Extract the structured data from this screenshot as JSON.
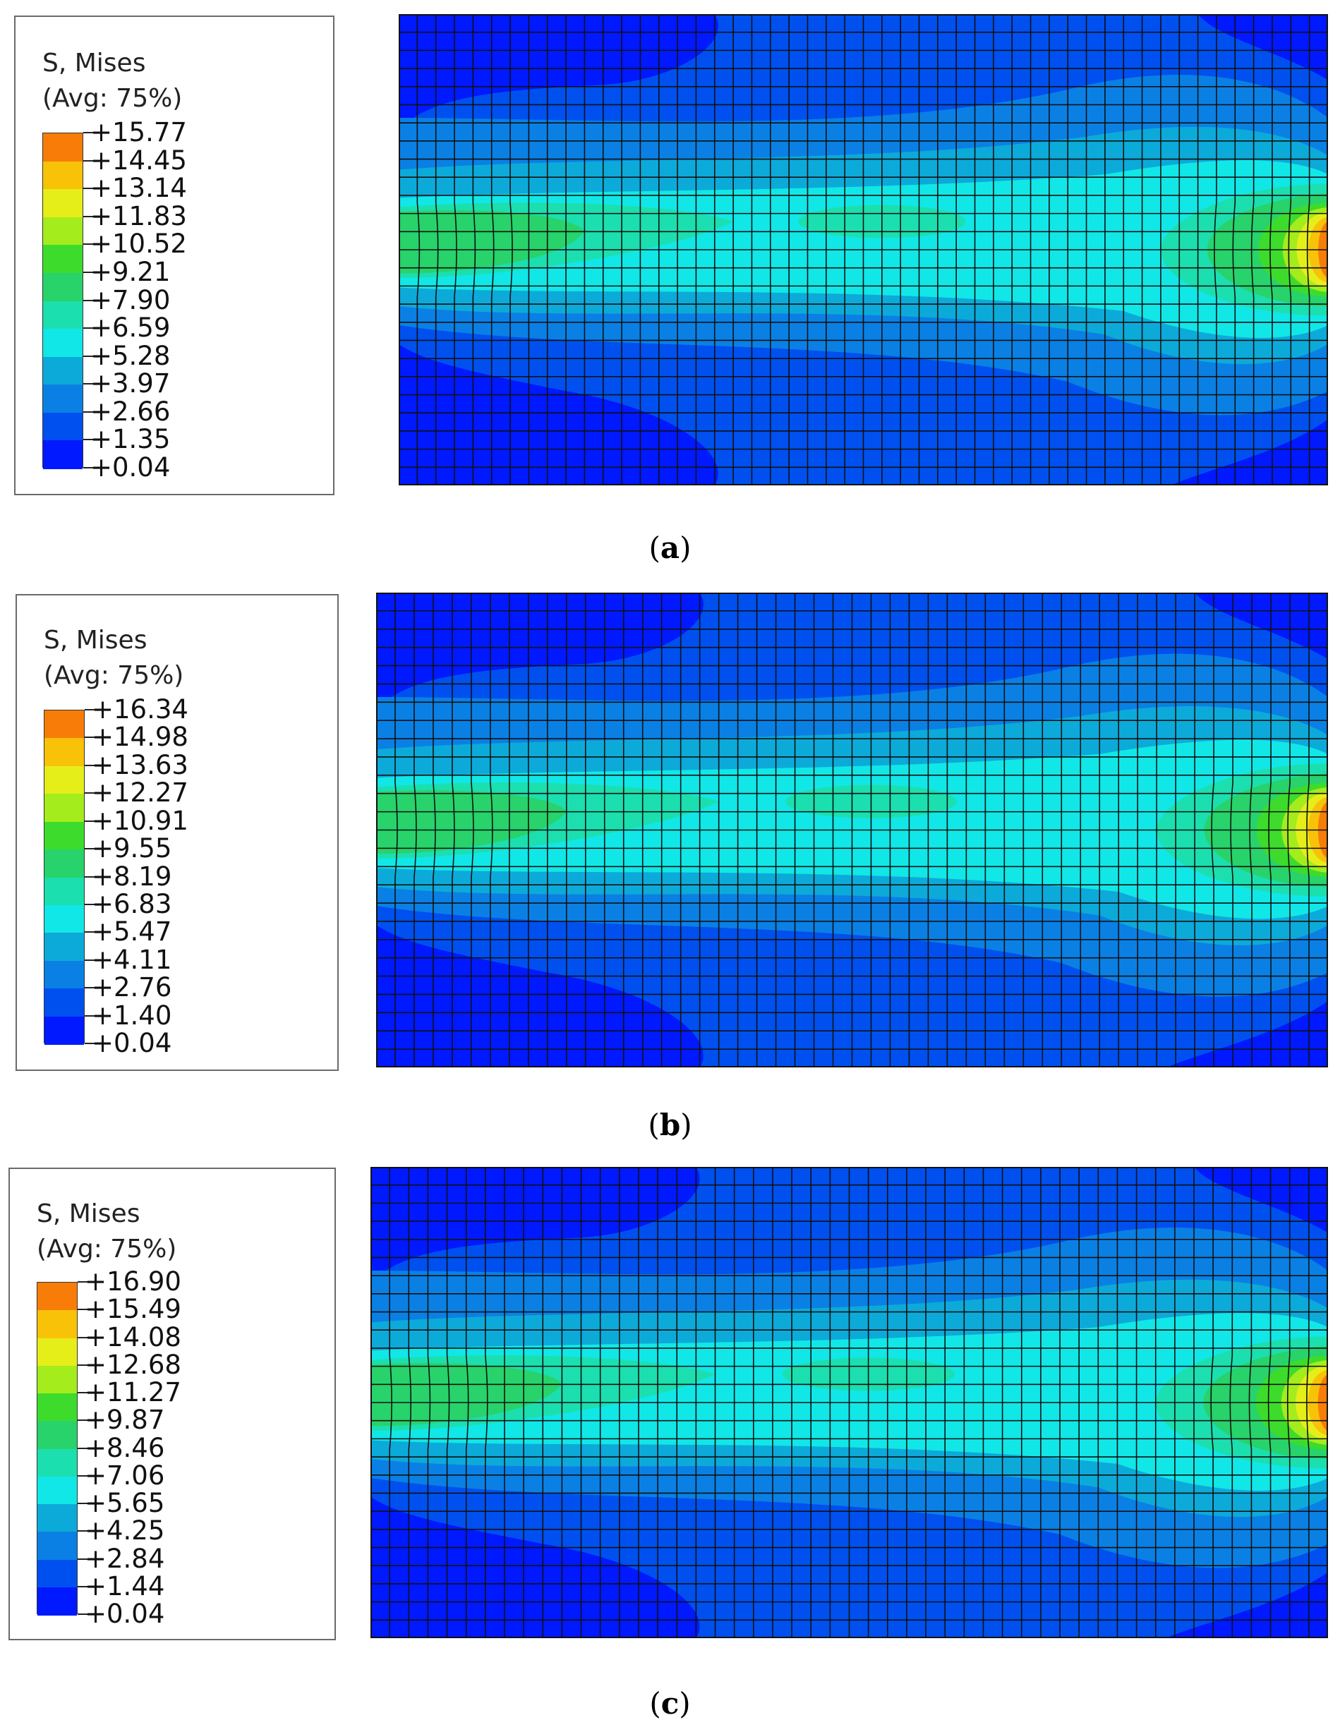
{
  "colors": [
    "#0019ff",
    "#0050ef",
    "#0a80e4",
    "#0caad9",
    "#11e7e7",
    "#1bdfae",
    "#27d36a",
    "#3ddc2c",
    "#a4ec1c",
    "#e6ee1a",
    "#f8c208",
    "#f77d08",
    "#ff1414"
  ],
  "panels": [
    {
      "legend_title_1": "S, Mises",
      "legend_title_2": "(Avg: 75%)",
      "levels": [
        "+15.77",
        "+14.45",
        "+13.14",
        "+11.83",
        "+10.52",
        "+9.21",
        "+7.90",
        "+6.59",
        "+5.28",
        "+3.97",
        "+2.66",
        "+1.35",
        "+0.04"
      ],
      "caption_open": "(",
      "caption_letter": "a",
      "caption_close": ")"
    },
    {
      "legend_title_1": "S, Mises",
      "legend_title_2": "(Avg: 75%)",
      "levels": [
        "+16.34",
        "+14.98",
        "+13.63",
        "+12.27",
        "+10.91",
        "+9.55",
        "+8.19",
        "+6.83",
        "+5.47",
        "+4.11",
        "+2.76",
        "+1.40",
        "+0.04"
      ],
      "caption_open": "(",
      "caption_letter": "b",
      "caption_close": ")"
    },
    {
      "legend_title_1": "S, Mises",
      "legend_title_2": "(Avg: 75%)",
      "levels": [
        "+16.90",
        "+15.49",
        "+14.08",
        "+12.68",
        "+11.27",
        "+9.87",
        "+8.46",
        "+7.06",
        "+5.65",
        "+4.25",
        "+2.84",
        "+1.44",
        "+0.04"
      ],
      "caption_open": "(",
      "caption_letter": "c",
      "caption_close": ")"
    }
  ]
}
